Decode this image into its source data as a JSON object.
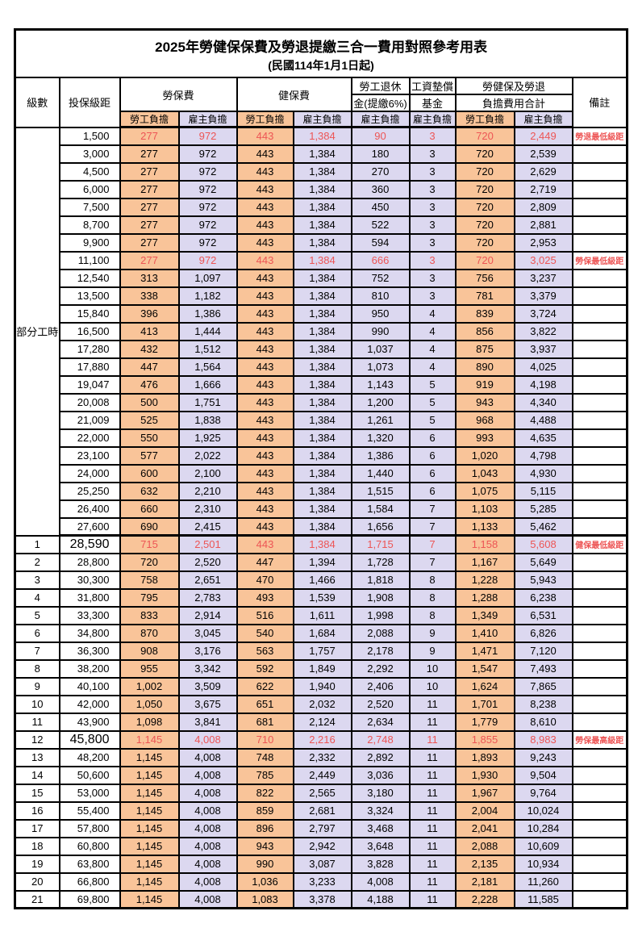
{
  "title": "2025年勞健保保費及勞退提繳三合一費用對照參考用表",
  "subtitle": "(民國114年1月1日起)",
  "columns": {
    "level": "級數",
    "bracket": "投保級距",
    "labor_insurance": "勞保費",
    "health_insurance": "健保費",
    "pension_line1": "勞工退休",
    "pension_line2": "金(提繳6%)",
    "wage_fund_line1": "工資墊償",
    "wage_fund_line2": "基金",
    "total_line1": "勞健保及勞退",
    "total_line2": "負擔費用合計",
    "remark": "備註",
    "labor_share": "勞工負擔",
    "employer_share": "雇主負擔"
  },
  "colors": {
    "labor_share_bg": "#f9c499",
    "employer_share_bg": "#dcd8f0",
    "highlight_text": "#ed5555"
  },
  "part_time_label": "部分工時",
  "part_time_span": 23,
  "rows": [
    {
      "level": "",
      "bracket": "1,500",
      "values": [
        "277",
        "972",
        "443",
        "1,384",
        "90",
        "3",
        "720",
        "2,449"
      ],
      "remark": "勞退最低級距",
      "highlight": true
    },
    {
      "level": "",
      "bracket": "3,000",
      "values": [
        "277",
        "972",
        "443",
        "1,384",
        "180",
        "3",
        "720",
        "2,539"
      ],
      "remark": ""
    },
    {
      "level": "",
      "bracket": "4,500",
      "values": [
        "277",
        "972",
        "443",
        "1,384",
        "270",
        "3",
        "720",
        "2,629"
      ],
      "remark": ""
    },
    {
      "level": "",
      "bracket": "6,000",
      "values": [
        "277",
        "972",
        "443",
        "1,384",
        "360",
        "3",
        "720",
        "2,719"
      ],
      "remark": ""
    },
    {
      "level": "",
      "bracket": "7,500",
      "values": [
        "277",
        "972",
        "443",
        "1,384",
        "450",
        "3",
        "720",
        "2,809"
      ],
      "remark": ""
    },
    {
      "level": "",
      "bracket": "8,700",
      "values": [
        "277",
        "972",
        "443",
        "1,384",
        "522",
        "3",
        "720",
        "2,881"
      ],
      "remark": ""
    },
    {
      "level": "",
      "bracket": "9,900",
      "values": [
        "277",
        "972",
        "443",
        "1,384",
        "594",
        "3",
        "720",
        "2,953"
      ],
      "remark": ""
    },
    {
      "level": "",
      "bracket": "11,100",
      "values": [
        "277",
        "972",
        "443",
        "1,384",
        "666",
        "3",
        "720",
        "3,025"
      ],
      "remark": "勞保最低級距",
      "highlight": true
    },
    {
      "level": "",
      "bracket": "12,540",
      "values": [
        "313",
        "1,097",
        "443",
        "1,384",
        "752",
        "3",
        "756",
        "3,237"
      ],
      "remark": ""
    },
    {
      "level": "",
      "bracket": "13,500",
      "values": [
        "338",
        "1,182",
        "443",
        "1,384",
        "810",
        "3",
        "781",
        "3,379"
      ],
      "remark": ""
    },
    {
      "level": "",
      "bracket": "15,840",
      "values": [
        "396",
        "1,386",
        "443",
        "1,384",
        "950",
        "4",
        "839",
        "3,724"
      ],
      "remark": ""
    },
    {
      "level": "",
      "bracket": "16,500",
      "values": [
        "413",
        "1,444",
        "443",
        "1,384",
        "990",
        "4",
        "856",
        "3,822"
      ],
      "remark": ""
    },
    {
      "level": "",
      "bracket": "17,280",
      "values": [
        "432",
        "1,512",
        "443",
        "1,384",
        "1,037",
        "4",
        "875",
        "3,937"
      ],
      "remark": ""
    },
    {
      "level": "",
      "bracket": "17,880",
      "values": [
        "447",
        "1,564",
        "443",
        "1,384",
        "1,073",
        "4",
        "890",
        "4,025"
      ],
      "remark": ""
    },
    {
      "level": "",
      "bracket": "19,047",
      "values": [
        "476",
        "1,666",
        "443",
        "1,384",
        "1,143",
        "5",
        "919",
        "4,198"
      ],
      "remark": ""
    },
    {
      "level": "",
      "bracket": "20,008",
      "values": [
        "500",
        "1,751",
        "443",
        "1,384",
        "1,200",
        "5",
        "943",
        "4,340"
      ],
      "remark": ""
    },
    {
      "level": "",
      "bracket": "21,009",
      "values": [
        "525",
        "1,838",
        "443",
        "1,384",
        "1,261",
        "5",
        "968",
        "4,488"
      ],
      "remark": ""
    },
    {
      "level": "",
      "bracket": "22,000",
      "values": [
        "550",
        "1,925",
        "443",
        "1,384",
        "1,320",
        "6",
        "993",
        "4,635"
      ],
      "remark": ""
    },
    {
      "level": "",
      "bracket": "23,100",
      "values": [
        "577",
        "2,022",
        "443",
        "1,384",
        "1,386",
        "6",
        "1,020",
        "4,798"
      ],
      "remark": ""
    },
    {
      "level": "",
      "bracket": "24,000",
      "values": [
        "600",
        "2,100",
        "443",
        "1,384",
        "1,440",
        "6",
        "1,043",
        "4,930"
      ],
      "remark": ""
    },
    {
      "level": "",
      "bracket": "25,250",
      "values": [
        "632",
        "2,210",
        "443",
        "1,384",
        "1,515",
        "6",
        "1,075",
        "5,115"
      ],
      "remark": ""
    },
    {
      "level": "",
      "bracket": "26,400",
      "values": [
        "660",
        "2,310",
        "443",
        "1,384",
        "1,584",
        "7",
        "1,103",
        "5,285"
      ],
      "remark": ""
    },
    {
      "level": "",
      "bracket": "27,600",
      "values": [
        "690",
        "2,415",
        "443",
        "1,384",
        "1,656",
        "7",
        "1,133",
        "5,462"
      ],
      "remark": "",
      "group_end": true
    },
    {
      "level": "1",
      "bracket": "28,590",
      "values": [
        "715",
        "2,501",
        "443",
        "1,384",
        "1,715",
        "7",
        "1,158",
        "5,608"
      ],
      "remark": "健保最低級距",
      "highlight": true,
      "big": true
    },
    {
      "level": "2",
      "bracket": "28,800",
      "values": [
        "720",
        "2,520",
        "447",
        "1,394",
        "1,728",
        "7",
        "1,167",
        "5,649"
      ],
      "remark": ""
    },
    {
      "level": "3",
      "bracket": "30,300",
      "values": [
        "758",
        "2,651",
        "470",
        "1,466",
        "1,818",
        "8",
        "1,228",
        "5,943"
      ],
      "remark": ""
    },
    {
      "level": "4",
      "bracket": "31,800",
      "values": [
        "795",
        "2,783",
        "493",
        "1,539",
        "1,908",
        "8",
        "1,288",
        "6,238"
      ],
      "remark": ""
    },
    {
      "level": "5",
      "bracket": "33,300",
      "values": [
        "833",
        "2,914",
        "516",
        "1,611",
        "1,998",
        "8",
        "1,349",
        "6,531"
      ],
      "remark": ""
    },
    {
      "level": "6",
      "bracket": "34,800",
      "values": [
        "870",
        "3,045",
        "540",
        "1,684",
        "2,088",
        "9",
        "1,410",
        "6,826"
      ],
      "remark": ""
    },
    {
      "level": "7",
      "bracket": "36,300",
      "values": [
        "908",
        "3,176",
        "563",
        "1,757",
        "2,178",
        "9",
        "1,471",
        "7,120"
      ],
      "remark": ""
    },
    {
      "level": "8",
      "bracket": "38,200",
      "values": [
        "955",
        "3,342",
        "592",
        "1,849",
        "2,292",
        "10",
        "1,547",
        "7,493"
      ],
      "remark": ""
    },
    {
      "level": "9",
      "bracket": "40,100",
      "values": [
        "1,002",
        "3,509",
        "622",
        "1,940",
        "2,406",
        "10",
        "1,624",
        "7,865"
      ],
      "remark": ""
    },
    {
      "level": "10",
      "bracket": "42,000",
      "values": [
        "1,050",
        "3,675",
        "651",
        "2,032",
        "2,520",
        "11",
        "1,701",
        "8,238"
      ],
      "remark": ""
    },
    {
      "level": "11",
      "bracket": "43,900",
      "values": [
        "1,098",
        "3,841",
        "681",
        "2,124",
        "2,634",
        "11",
        "1,779",
        "8,610"
      ],
      "remark": ""
    },
    {
      "level": "12",
      "bracket": "45,800",
      "values": [
        "1,145",
        "4,008",
        "710",
        "2,216",
        "2,748",
        "11",
        "1,855",
        "8,983"
      ],
      "remark": "勞保最高級距",
      "highlight": true,
      "big": true
    },
    {
      "level": "13",
      "bracket": "48,200",
      "values": [
        "1,145",
        "4,008",
        "748",
        "2,332",
        "2,892",
        "11",
        "1,893",
        "9,243"
      ],
      "remark": ""
    },
    {
      "level": "14",
      "bracket": "50,600",
      "values": [
        "1,145",
        "4,008",
        "785",
        "2,449",
        "3,036",
        "11",
        "1,930",
        "9,504"
      ],
      "remark": ""
    },
    {
      "level": "15",
      "bracket": "53,000",
      "values": [
        "1,145",
        "4,008",
        "822",
        "2,565",
        "3,180",
        "11",
        "1,967",
        "9,764"
      ],
      "remark": ""
    },
    {
      "level": "16",
      "bracket": "55,400",
      "values": [
        "1,145",
        "4,008",
        "859",
        "2,681",
        "3,324",
        "11",
        "2,004",
        "10,024"
      ],
      "remark": ""
    },
    {
      "level": "17",
      "bracket": "57,800",
      "values": [
        "1,145",
        "4,008",
        "896",
        "2,797",
        "3,468",
        "11",
        "2,041",
        "10,284"
      ],
      "remark": ""
    },
    {
      "level": "18",
      "bracket": "60,800",
      "values": [
        "1,145",
        "4,008",
        "943",
        "2,942",
        "3,648",
        "11",
        "2,088",
        "10,609"
      ],
      "remark": ""
    },
    {
      "level": "19",
      "bracket": "63,800",
      "values": [
        "1,145",
        "4,008",
        "990",
        "3,087",
        "3,828",
        "11",
        "2,135",
        "10,934"
      ],
      "remark": ""
    },
    {
      "level": "20",
      "bracket": "66,800",
      "values": [
        "1,145",
        "4,008",
        "1,036",
        "3,233",
        "4,008",
        "11",
        "2,181",
        "11,260"
      ],
      "remark": ""
    },
    {
      "level": "21",
      "bracket": "69,800",
      "values": [
        "1,145",
        "4,008",
        "1,083",
        "3,378",
        "4,188",
        "11",
        "2,228",
        "11,585"
      ],
      "remark": ""
    }
  ]
}
